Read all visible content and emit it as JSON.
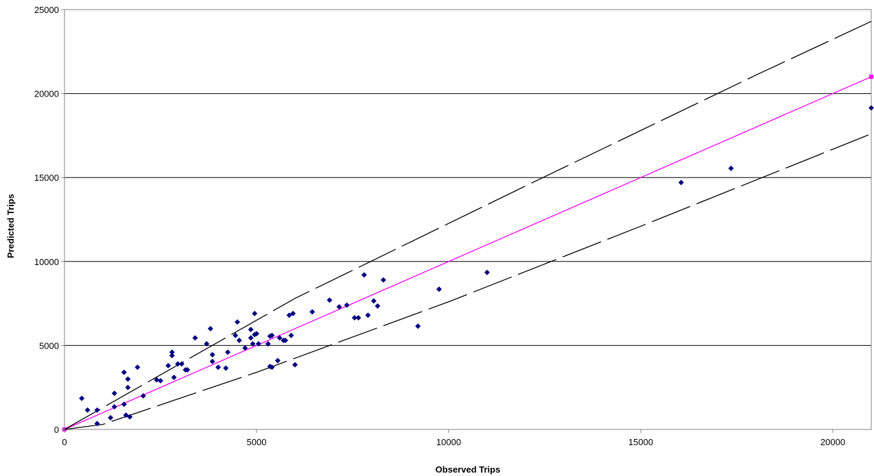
{
  "chart_data": {
    "type": "scatter",
    "title": "",
    "xlabel": "Observed Trips",
    "ylabel": "Predicted Trips",
    "xlim": [
      0,
      21000
    ],
    "ylim": [
      0,
      25000
    ],
    "xticks": [
      0,
      5000,
      10000,
      15000,
      20000
    ],
    "yticks": [
      0,
      5000,
      10000,
      15000,
      20000,
      25000
    ],
    "grid": "horizontal",
    "legend": "none",
    "colors": {
      "points": "#000080",
      "identity": "#ff00ff",
      "bounds": "#000000",
      "grid": "#000000"
    },
    "series": [
      {
        "type": "scatter",
        "marker": "diamond",
        "points": [
          [
            450,
            1850
          ],
          [
            600,
            1150
          ],
          [
            850,
            1150
          ],
          [
            850,
            350
          ],
          [
            1200,
            700
          ],
          [
            1300,
            2150
          ],
          [
            1300,
            1350
          ],
          [
            1550,
            3400
          ],
          [
            1550,
            1500
          ],
          [
            1600,
            850
          ],
          [
            1650,
            3000
          ],
          [
            1650,
            2500
          ],
          [
            1700,
            750
          ],
          [
            1900,
            3700
          ],
          [
            2050,
            2000
          ],
          [
            2400,
            2950
          ],
          [
            2500,
            2900
          ],
          [
            2700,
            3800
          ],
          [
            2800,
            4600
          ],
          [
            2800,
            4400
          ],
          [
            2850,
            3100
          ],
          [
            2950,
            3900
          ],
          [
            3050,
            3900
          ],
          [
            3150,
            3550
          ],
          [
            3200,
            3550
          ],
          [
            3400,
            5450
          ],
          [
            3700,
            5100
          ],
          [
            3800,
            6000
          ],
          [
            3850,
            4450
          ],
          [
            3850,
            4050
          ],
          [
            4000,
            3700
          ],
          [
            4200,
            3650
          ],
          [
            4250,
            4600
          ],
          [
            4450,
            5600
          ],
          [
            4500,
            6400
          ],
          [
            4550,
            5300
          ],
          [
            4700,
            4850
          ],
          [
            4850,
            5950
          ],
          [
            4850,
            5450
          ],
          [
            4900,
            5100
          ],
          [
            4950,
            6900
          ],
          [
            4950,
            5650
          ],
          [
            5000,
            5700
          ],
          [
            5050,
            5100
          ],
          [
            5300,
            5100
          ],
          [
            5350,
            3750
          ],
          [
            5350,
            5550
          ],
          [
            5400,
            3700
          ],
          [
            5400,
            5600
          ],
          [
            5550,
            4100
          ],
          [
            5600,
            5450
          ],
          [
            5700,
            5300
          ],
          [
            5750,
            5300
          ],
          [
            5850,
            6800
          ],
          [
            5900,
            5600
          ],
          [
            5950,
            6900
          ],
          [
            6000,
            3850
          ],
          [
            6450,
            7000
          ],
          [
            6900,
            7700
          ],
          [
            7150,
            7300
          ],
          [
            7350,
            7400
          ],
          [
            7550,
            6650
          ],
          [
            7650,
            6650
          ],
          [
            7800,
            9200
          ],
          [
            7900,
            6800
          ],
          [
            8050,
            7650
          ],
          [
            8150,
            7350
          ],
          [
            8300,
            8900
          ],
          [
            9200,
            6150
          ],
          [
            9750,
            8350
          ],
          [
            11000,
            9350
          ],
          [
            16050,
            14700
          ],
          [
            17350,
            15550
          ],
          [
            21000,
            19150
          ]
        ]
      },
      {
        "type": "line",
        "style": "solid",
        "points": [
          [
            0,
            0
          ],
          [
            21000,
            21000
          ]
        ]
      },
      {
        "type": "line",
        "style": "dashed",
        "points": [
          [
            0,
            0
          ],
          [
            6000,
            7800
          ],
          [
            12000,
            14500
          ],
          [
            15000,
            17800
          ],
          [
            18000,
            21100
          ],
          [
            21000,
            24300
          ]
        ]
      },
      {
        "type": "line",
        "style": "dashed",
        "points": [
          [
            0,
            0
          ],
          [
            1000,
            300
          ],
          [
            5000,
            3400
          ],
          [
            10000,
            7600
          ],
          [
            15000,
            12100
          ],
          [
            21000,
            17600
          ]
        ]
      }
    ]
  }
}
